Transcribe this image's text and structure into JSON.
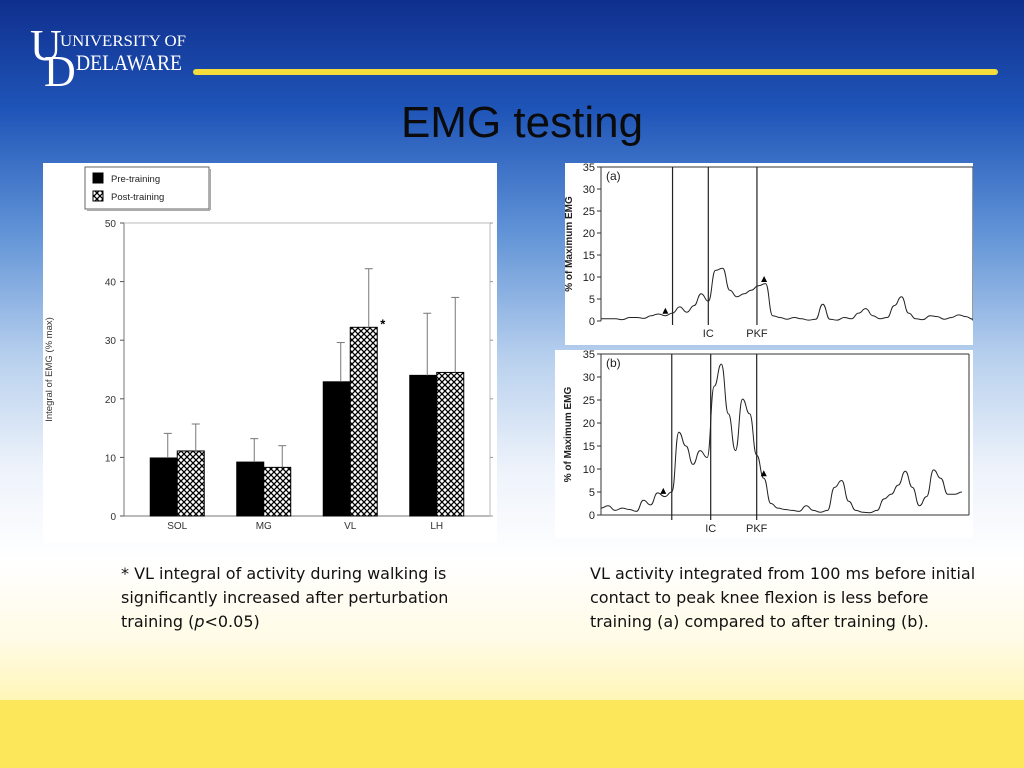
{
  "header": {
    "logo_university": "UNIVERSITY OF",
    "logo_delaware": "DELAWARE",
    "logo_u": "U",
    "logo_d": "D"
  },
  "slide": {
    "title": "EMG testing"
  },
  "captions": {
    "left_asterisk": "* VL integral of activity during walking is significantly increased after perturbation training (",
    "left_p": "p",
    "left_end": "<0.05)",
    "right": "VL activity integrated from 100 ms before initial contact to peak knee flexion is less before training (a) compared to after training (b)."
  },
  "chart_data": [
    {
      "type": "bar",
      "categories": [
        "SOL",
        "MG",
        "VL",
        "LH"
      ],
      "ylabel": "Integral of EMG (% max)",
      "ylim": [
        0,
        50
      ],
      "yticks": [
        0,
        10,
        20,
        30,
        40,
        50
      ],
      "legend_position": "top-left",
      "series": [
        {
          "name": "Pre-training",
          "values": [
            9.9,
            9.2,
            22.9,
            24.0
          ],
          "error": [
            4.2,
            4.0,
            6.7,
            10.6
          ],
          "color": "#000000",
          "pattern": "solid"
        },
        {
          "name": "Post-training",
          "values": [
            11.1,
            8.3,
            32.2,
            24.5
          ],
          "error": [
            4.6,
            3.7,
            10.0,
            12.8
          ],
          "color": "#ffffff",
          "pattern": "crosshatch"
        }
      ],
      "annotations": [
        {
          "category": "VL",
          "series": "Post-training",
          "text": "*"
        }
      ]
    },
    {
      "type": "line",
      "panel_label": "(a)",
      "ylabel": "% of Maximum EMG",
      "ylim": [
        0,
        35
      ],
      "yticks": [
        0,
        5,
        10,
        15,
        20,
        25,
        30,
        35
      ],
      "grid": false,
      "markers": [
        {
          "x": 10.0,
          "label": ""
        },
        {
          "x": 15.0,
          "label": "IC"
        },
        {
          "x": 21.8,
          "label": "PKF"
        }
      ],
      "arrows": [
        {
          "x": 9.0
        },
        {
          "x": 22.8
        }
      ],
      "x": [
        0,
        2,
        3,
        4,
        5,
        6,
        7,
        8,
        9,
        10,
        11,
        12,
        13,
        14,
        15,
        16,
        17,
        18,
        19,
        20,
        21,
        22,
        23,
        24,
        25,
        26,
        27,
        28,
        29,
        30,
        31,
        32,
        33,
        34,
        35,
        36,
        37,
        38,
        39,
        40,
        41,
        42,
        43,
        44,
        45,
        46,
        47,
        48,
        49,
        50,
        51,
        52
      ],
      "y": [
        0.5,
        0.5,
        0.3,
        0.8,
        0.8,
        0.6,
        1.2,
        1.6,
        1.2,
        1.8,
        3.2,
        2.0,
        3.5,
        6.2,
        4.5,
        11.5,
        12.0,
        7.0,
        5.5,
        6.2,
        7.0,
        8.0,
        8.5,
        1.2,
        0.8,
        0.4,
        0.8,
        0.5,
        0.2,
        0.4,
        3.8,
        0.4,
        0.2,
        0.8,
        0.5,
        1.8,
        2.8,
        1.2,
        0.5,
        0.8,
        3.5,
        5.5,
        1.8,
        0.5,
        0.3,
        1.2,
        1.0,
        0.4,
        0.8,
        1.4,
        1.0,
        0.4
      ]
    },
    {
      "type": "line",
      "panel_label": "(b)",
      "ylabel": "% of Maximum EMG",
      "ylim": [
        0,
        35
      ],
      "yticks": [
        0,
        5,
        10,
        15,
        20,
        25,
        30,
        35
      ],
      "grid": false,
      "markers": [
        {
          "x": 10.0,
          "label": ""
        },
        {
          "x": 15.5,
          "label": "IC"
        },
        {
          "x": 22.0,
          "label": "PKF"
        }
      ],
      "arrows": [
        {
          "x": 8.8
        },
        {
          "x": 23.0
        }
      ],
      "x": [
        0,
        1,
        2,
        3,
        4,
        5,
        6,
        7,
        8,
        9,
        10,
        11,
        12,
        13,
        14,
        15,
        16,
        17,
        18,
        19,
        20,
        21,
        22,
        23,
        24,
        25,
        26,
        27,
        28,
        29,
        30,
        31,
        32,
        33,
        34,
        35,
        36,
        37,
        38,
        39,
        40,
        41,
        42,
        43,
        44,
        45,
        46,
        47,
        48,
        49,
        50,
        51
      ],
      "y": [
        1.5,
        2.0,
        1.0,
        1.5,
        1.2,
        0.8,
        3.2,
        2.2,
        4.8,
        4.0,
        5.0,
        18.0,
        15.0,
        11.0,
        14.0,
        12.5,
        28.0,
        32.8,
        22.0,
        14.0,
        25.2,
        22.0,
        13.0,
        8.0,
        2.5,
        1.5,
        1.2,
        1.0,
        0.8,
        2.0,
        1.0,
        0.6,
        1.0,
        6.0,
        7.5,
        3.0,
        1.0,
        0.6,
        0.5,
        1.0,
        3.5,
        4.5,
        6.5,
        9.5,
        6.0,
        2.0,
        4.0,
        9.8,
        8.0,
        4.5,
        4.5,
        5.0
      ]
    }
  ]
}
